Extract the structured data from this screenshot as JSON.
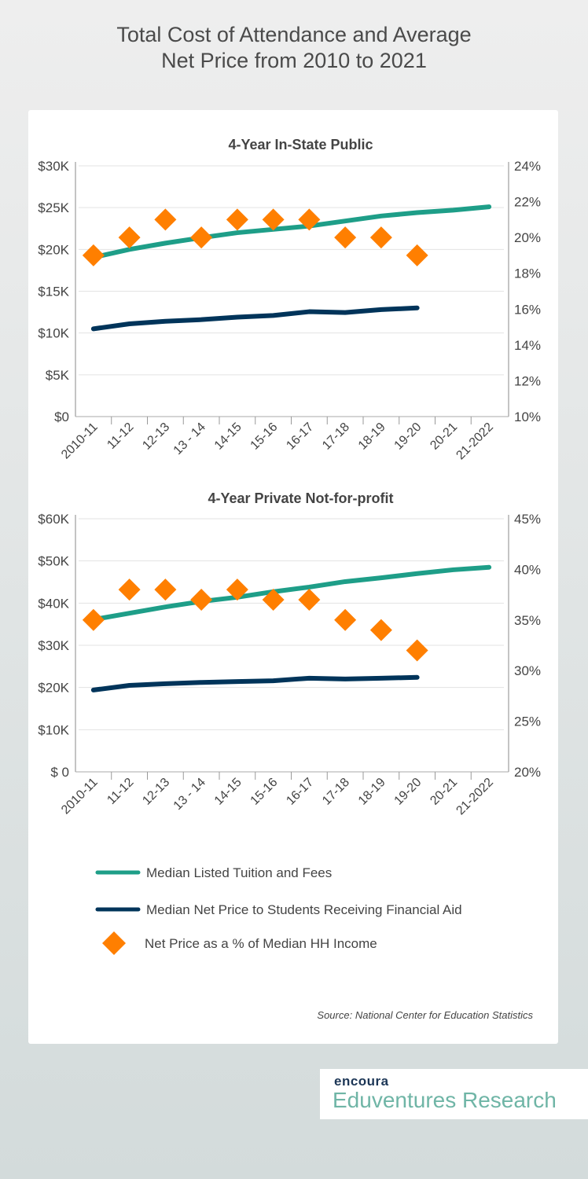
{
  "title_line1": "Total Cost of Attendance and Average",
  "title_line2": "Net Price from 2010 to 2021",
  "source": "Source: National Center for Education Statistics",
  "logo": {
    "brand": "encoura",
    "product": "Eduventures Research"
  },
  "colors": {
    "tuition": "#1e9e88",
    "net_price": "#00345a",
    "pct": "#ff7f00"
  },
  "legend": [
    {
      "label": "Median Listed Tuition and Fees",
      "type": "line",
      "color": "#1e9e88"
    },
    {
      "label": "Median Net Price to Students Receiving Financial Aid",
      "type": "line",
      "color": "#00345a"
    },
    {
      "label": "Net Price as a % of Median HH Income",
      "type": "diamond",
      "color": "#ff7f00"
    }
  ],
  "chart_data": [
    {
      "type": "line",
      "title": "4-Year In-State Public",
      "categories": [
        "2010-11",
        "11-12",
        "12-13",
        "13 - 14",
        "14-15",
        "15-16",
        "16-17",
        "17-18",
        "18-19",
        "19-20",
        "20-21",
        "21-2022"
      ],
      "ylim": [
        0,
        30000
      ],
      "yticks": [
        "$0",
        "$5K",
        "$10K",
        "$15K",
        "$20K",
        "$25K",
        "$30K"
      ],
      "y2lim": [
        10,
        24
      ],
      "y2ticks": [
        "10%",
        "12%",
        "14%",
        "16%",
        "18%",
        "20%",
        "22%",
        "24%"
      ],
      "grid": true,
      "series": [
        {
          "name": "Median Listed Tuition and Fees",
          "axis": "left",
          "values": [
            19050,
            20000,
            20750,
            21400,
            22000,
            22400,
            22800,
            23400,
            24000,
            24400,
            24700,
            25100
          ]
        },
        {
          "name": "Median Net Price to Students Receiving Financial Aid",
          "axis": "left",
          "values": [
            10500,
            11100,
            11400,
            11600,
            11900,
            12100,
            12550,
            12450,
            12800,
            13000,
            null,
            null
          ]
        },
        {
          "name": "Net Price as a % of Median HH Income",
          "axis": "right",
          "type": "scatter",
          "values": [
            19,
            20,
            21,
            20,
            21,
            21,
            21,
            20,
            20,
            19,
            null,
            null
          ]
        }
      ]
    },
    {
      "type": "line",
      "title": "4-Year Private Not-for-profit",
      "categories": [
        "2010-11",
        "11-12",
        "12-13",
        "13 - 14",
        "14-15",
        "15-16",
        "16-17",
        "17-18",
        "18-19",
        "19-20",
        "20-21",
        "21-2022"
      ],
      "ylim": [
        0,
        60000
      ],
      "yticks": [
        "$ 0",
        "$10K",
        "$20K",
        "$30K",
        "$40K",
        "$50K",
        "$60K"
      ],
      "y2lim": [
        20,
        45
      ],
      "y2ticks": [
        "20%",
        "25%",
        "30%",
        "35%",
        "40%",
        "45%"
      ],
      "grid": true,
      "series": [
        {
          "name": "Median Listed Tuition and Fees",
          "axis": "left",
          "values": [
            36100,
            37600,
            39100,
            40400,
            41400,
            42700,
            43800,
            45100,
            46000,
            47000,
            47900,
            48500
          ]
        },
        {
          "name": "Median Net Price to Students Receiving Financial Aid",
          "axis": "left",
          "values": [
            19400,
            20500,
            20900,
            21200,
            21400,
            21600,
            22200,
            22000,
            22200,
            22400,
            null,
            null
          ]
        },
        {
          "name": "Net Price as a % of Median HH Income",
          "axis": "right",
          "type": "scatter",
          "values": [
            35,
            38,
            38,
            37,
            38,
            37,
            37,
            35,
            34,
            32,
            null,
            null
          ]
        }
      ]
    }
  ]
}
